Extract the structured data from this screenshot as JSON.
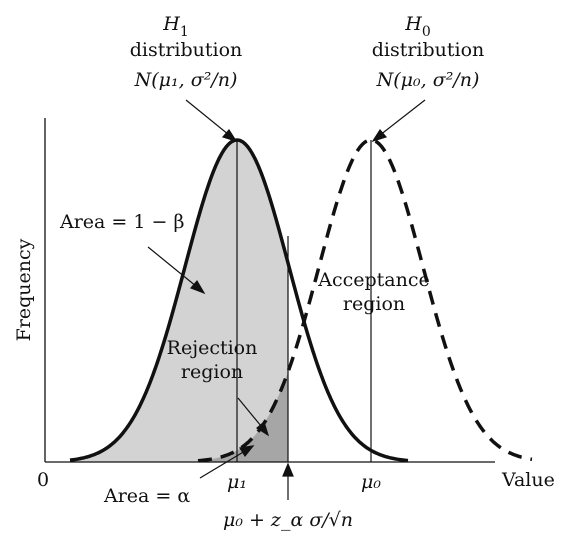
{
  "axes": {
    "y_label": "Frequency",
    "x_label": "Value",
    "origin_label": "0"
  },
  "curves": {
    "h1": {
      "name_line1": "H",
      "name_sub": "1",
      "name_line2": "distribution",
      "spec": "N(μ₁, σ²/n)"
    },
    "h0": {
      "name_line1": "H",
      "name_sub": "0",
      "name_line2": "distribution",
      "spec": "N(μ₀, σ²/n)"
    }
  },
  "regions": {
    "power_area": "Area = 1 − β",
    "acceptance": [
      "Acceptance",
      "region"
    ],
    "rejection": [
      "Rejection",
      "region"
    ],
    "alpha_area": "Area = α"
  },
  "ticks": {
    "mu1": "μ₁",
    "mu0": "μ₀",
    "critical": "μ₀ + z_α σ/√n"
  },
  "colors": {
    "light_fill": "#d3d3d3",
    "dark_fill": "#a6a6a6",
    "stroke": "#111111"
  }
}
